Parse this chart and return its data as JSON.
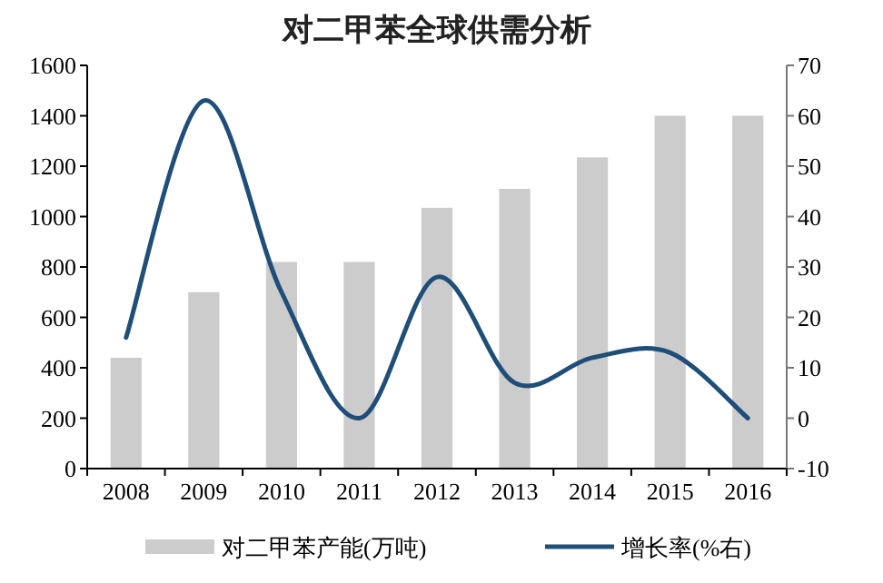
{
  "chart_data": {
    "type": "bar",
    "title": "对二甲苯全球供需分析",
    "categories": [
      "2008",
      "2009",
      "2010",
      "2011",
      "2012",
      "2013",
      "2014",
      "2015",
      "2016"
    ],
    "series": [
      {
        "name": "对二甲苯产能(万吨)",
        "color": "#cccccc",
        "values": [
          440,
          700,
          820,
          820,
          1035,
          1110,
          1235,
          1400,
          1400
        ]
      },
      {
        "name": "增长率(%右)",
        "type": "line",
        "axis": "y2",
        "color": "#1f4e79",
        "values": [
          16,
          63,
          25,
          0,
          28,
          7,
          12,
          13,
          0
        ]
      }
    ],
    "ylim": [
      0,
      1600
    ],
    "yticks": [
      0,
      200,
      400,
      600,
      800,
      1000,
      1200,
      1400,
      1600
    ],
    "y2lim": [
      -10,
      70
    ],
    "y2ticks": [
      -10,
      0,
      10,
      20,
      30,
      40,
      50,
      60,
      70
    ],
    "legend": "bottom",
    "grid": false,
    "marker": "none",
    "line_style": "solid"
  }
}
